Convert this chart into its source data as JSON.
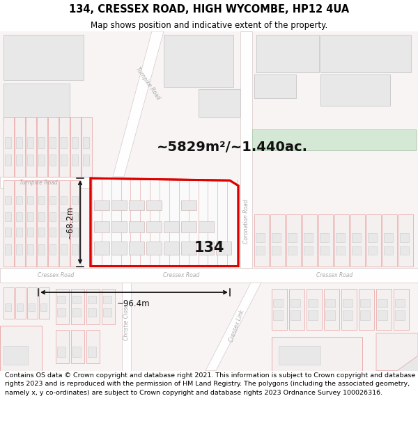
{
  "title": "134, CRESSEX ROAD, HIGH WYCOMBE, HP12 4UA",
  "subtitle": "Map shows position and indicative extent of the property.",
  "footer": "Contains OS data © Crown copyright and database right 2021. This information is subject to Crown copyright and database rights 2023 and is reproduced with the permission of HM Land Registry. The polygons (including the associated geometry, namely x, y co-ordinates) are subject to Crown copyright and database rights 2023 Ordnance Survey 100026316.",
  "map_bg": "#f8f4f4",
  "building_fill": "#f5f0f0",
  "building_stroke": "#e8a0a0",
  "gray_building_fill": "#e8e8e8",
  "gray_building_stroke": "#cccccc",
  "highlight_stroke": "#dd0000",
  "green_fill": "#d5e8d5",
  "green_stroke": "#b0ccb0",
  "road_fill": "#fefefe",
  "road_stroke": "#d8c8c8",
  "dim_color": "#111111",
  "area_label": "~5829m²/~1.440ac.",
  "dim_height_label": "~68.2m",
  "dim_width_label": "~96.4m"
}
